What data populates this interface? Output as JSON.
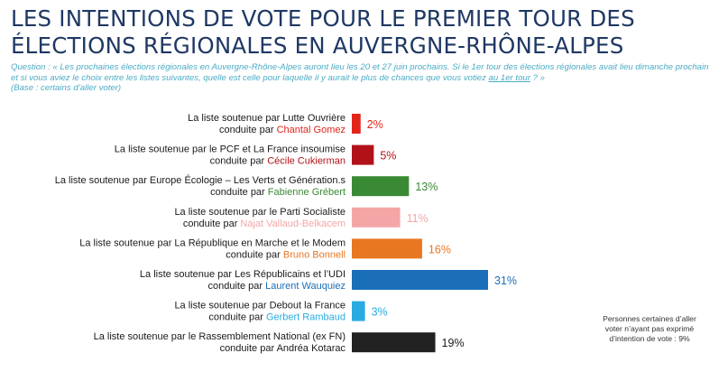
{
  "title": {
    "line1": "LES INTENTIONS DE VOTE POUR LE PREMIER TOUR DES",
    "line2": "ÉLECTIONS RÉGIONALES EN AUVERGNE-RHÔNE-ALPES"
  },
  "question": {
    "prefix": "Question : « Les prochaines élections régionales en Auvergne-Rhône-Alpes auront lieu les 20 et 27 juin prochains. Si le 1er tour des élections régionales avait lieu dimanche prochain et si vous aviez le choix entre les listes suivantes, quelle est celle pour laquelle il y aurait le plus de chances que vous votiez ",
    "underlined": "au 1er tour",
    "suffix": " ? »",
    "base": "(Base : certains d’aller voter)"
  },
  "note": {
    "line1": "Personnes certaines d’aller",
    "line2": "voter n’ayant pas exprimé",
    "line3": "d’intention de vote : 9%"
  },
  "chart_data": {
    "type": "bar",
    "orientation": "horizontal",
    "unit": "%",
    "xlim": [
      0,
      31
    ],
    "categories": [
      {
        "line1": "La liste soutenue par Lutte Ouvrière",
        "prefix": "conduite par ",
        "candidate": "Chantal Gomez",
        "value": 2,
        "value_label": "2%",
        "color": "#e1251b"
      },
      {
        "line1": "La liste soutenue par le PCF et La France insoumise",
        "prefix": "conduite par ",
        "candidate": "Cécile Cukierman",
        "value": 5,
        "value_label": "5%",
        "color": "#b1121a"
      },
      {
        "line1": "La liste soutenue par Europe Écologie – Les Verts et Génération.s",
        "prefix": "conduite par ",
        "candidate": "Fabienne Grébert",
        "value": 13,
        "value_label": "13%",
        "color": "#3a8a35"
      },
      {
        "line1": "La liste soutenue par le Parti Socialiste",
        "prefix": "conduite par ",
        "candidate": "Najat Vallaud-Belkacem",
        "value": 11,
        "value_label": "11%",
        "color": "#f4a6a6"
      },
      {
        "line1": "La liste soutenue par La République en Marche et le Modem",
        "prefix": "conduite par ",
        "candidate": "Bruno Bonnell",
        "value": 16,
        "value_label": "16%",
        "color": "#e87722"
      },
      {
        "line1": "La liste soutenue par Les Républicains et l’UDI",
        "prefix": "conduite par ",
        "candidate": "Laurent Wauquiez",
        "value": 31,
        "value_label": "31%",
        "color": "#1b6fb8"
      },
      {
        "line1": "La liste soutenue par Debout la France",
        "prefix": "conduite par ",
        "candidate": "Gerbert Rambaud",
        "value": 3,
        "value_label": "3%",
        "color": "#29abe2"
      },
      {
        "line1": "La liste soutenue par le Rassemblement National (ex FN)",
        "prefix": "conduite par ",
        "candidate": "Andréa Kotarac",
        "value": 19,
        "value_label": "19%",
        "color": "#222222"
      }
    ]
  }
}
